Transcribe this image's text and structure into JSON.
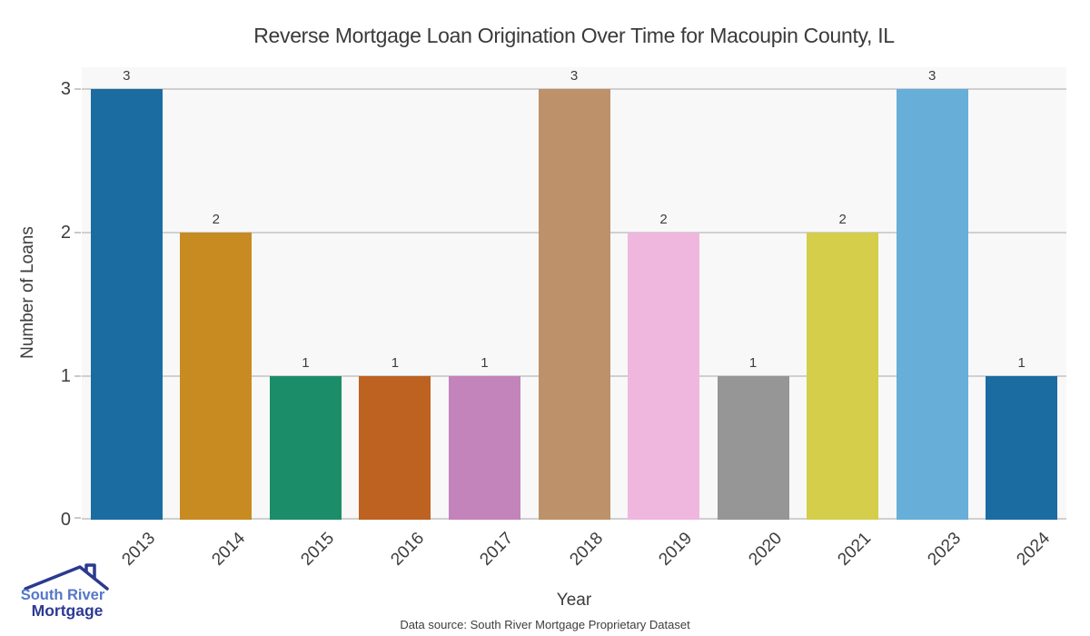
{
  "title": "Reverse Mortgage Loan Origination Over Time for Macoupin County, IL",
  "chart_data": {
    "type": "bar",
    "categories": [
      "2013",
      "2014",
      "2015",
      "2016",
      "2017",
      "2018",
      "2019",
      "2020",
      "2021",
      "2023",
      "2024"
    ],
    "values": [
      3,
      2,
      1,
      1,
      1,
      3,
      2,
      1,
      2,
      3,
      1
    ],
    "bar_colors": [
      "#1a6ca1",
      "#c78b21",
      "#1b8e69",
      "#bd6220",
      "#c383bb",
      "#bd9169",
      "#f0b7de",
      "#969696",
      "#d4ce4a",
      "#67aed8",
      "#1a6ca1"
    ],
    "title": "Reverse Mortgage Loan Origination Over Time for Macoupin County, IL",
    "xlabel": "Year",
    "ylabel": "Number of Loans",
    "ylim": [
      0,
      3.15
    ],
    "yticks": [
      0,
      1,
      2,
      3
    ],
    "grid": true,
    "legend": "none",
    "bar_value_labels": true
  },
  "footer": {
    "data_source": "Data source: South River Mortgage Proprietary Dataset"
  },
  "logo": {
    "line1": "South River",
    "line2": "Mortgage",
    "text1_color": "#5577c8",
    "text2_color": "#2d3a92",
    "roof_color": "#2b3a8f"
  },
  "style_colors": {
    "plot_background": "#f8f8f8",
    "gridline": "#d0d0d0",
    "tick_mark": "#c9c9c9",
    "text": "#3d3d3d"
  }
}
